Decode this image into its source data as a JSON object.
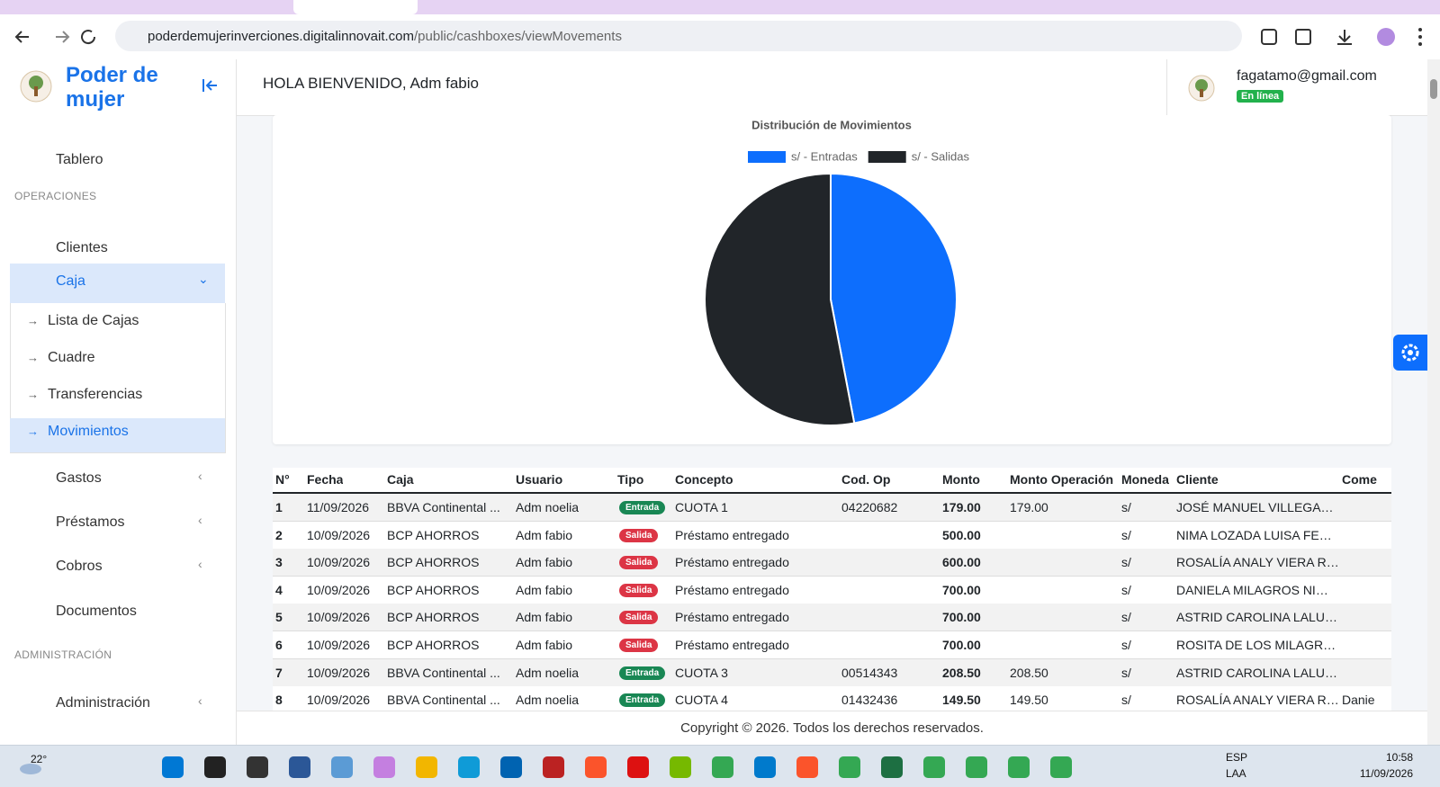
{
  "browser": {
    "url_host": "poderdemujerinverciones.digitalinnovait.com",
    "url_path": "/public/cashboxes/viewMovements"
  },
  "sidebar": {
    "brand": "Poder de mujer",
    "items": [
      {
        "label": "Tablero"
      },
      {
        "section": "OPERACIONES"
      },
      {
        "label": "Clientes"
      },
      {
        "label": "Caja",
        "children": [
          "Lista de Cajas",
          "Cuadre",
          "Transferencias",
          "Movimientos"
        ]
      },
      {
        "label": "Gastos"
      },
      {
        "label": "Préstamos"
      },
      {
        "label": "Cobros"
      },
      {
        "label": "Documentos"
      },
      {
        "section": "ADMINISTRACIÓN"
      },
      {
        "label": "Administración"
      }
    ]
  },
  "header": {
    "greeting": "HOLA BIENVENIDO, Adm fabio",
    "email": "fagatamo@gmail.com",
    "status": "En línea"
  },
  "chart_data": {
    "type": "pie",
    "title": "Distribución de Movimientos",
    "categories": [
      "s/ - Entradas",
      "s/ - Salidas"
    ],
    "values": [
      47,
      53
    ],
    "colors": [
      "#0d6efd",
      "#212529"
    ]
  },
  "table": {
    "columns": [
      "N°",
      "Fecha",
      "Caja",
      "Usuario",
      "Tipo",
      "Concepto",
      "Cod. Op",
      "Monto",
      "Monto Operación",
      "Moneda",
      "Cliente",
      "Come"
    ],
    "rows": [
      [
        "1",
        "11/09/2026",
        "BBVA Continental ...",
        "Adm noelia",
        "Entrada",
        "CUOTA 1",
        "04220682",
        "179.00",
        "179.00",
        "s/",
        "JOSÉ MANUEL VILLEGA…",
        null
      ],
      [
        "2",
        "10/09/2026",
        "BCP AHORROS",
        "Adm fabio",
        "Salida",
        "Préstamo entregado",
        null,
        "500.00",
        null,
        "s/",
        "NIMA LOZADA LUISA FE…",
        null
      ],
      [
        "3",
        "10/09/2026",
        "BCP AHORROS",
        "Adm fabio",
        "Salida",
        "Préstamo entregado",
        null,
        "600.00",
        null,
        "s/",
        "ROSALÍA ANALY VIERA R…",
        null
      ],
      [
        "4",
        "10/09/2026",
        "BCP AHORROS",
        "Adm fabio",
        "Salida",
        "Préstamo entregado",
        null,
        "700.00",
        null,
        "s/",
        "DANIELA MILAGROS NI…",
        null
      ],
      [
        "5",
        "10/09/2026",
        "BCP AHORROS",
        "Adm fabio",
        "Salida",
        "Préstamo entregado",
        null,
        "700.00",
        null,
        "s/",
        "ASTRID CAROLINA LALU…",
        null
      ],
      [
        "6",
        "10/09/2026",
        "BCP AHORROS",
        "Adm fabio",
        "Salida",
        "Préstamo entregado",
        null,
        "700.00",
        null,
        "s/",
        "ROSITA DE LOS MILAGR…",
        null
      ],
      [
        "7",
        "10/09/2026",
        "BBVA Continental ...",
        "Adm noelia",
        "Entrada",
        "CUOTA 3",
        "00514343",
        "208.50",
        "208.50",
        "s/",
        "ASTRID CAROLINA LALU…",
        null
      ],
      [
        "8",
        "10/09/2026",
        "BBVA Continental ...",
        "Adm noelia",
        "Entrada",
        "CUOTA 4",
        "01432436",
        "149.50",
        "149.50",
        "s/",
        "ROSALÍA ANALY VIERA R…",
        "Danie"
      ]
    ]
  },
  "footer": {
    "copyright": "Copyright © 2026. Todos los derechos reservados."
  },
  "taskbar": {
    "weather": "22°",
    "lang": "ESP",
    "layout": "LAA",
    "time": "10:58",
    "date": "11/09/2026"
  }
}
